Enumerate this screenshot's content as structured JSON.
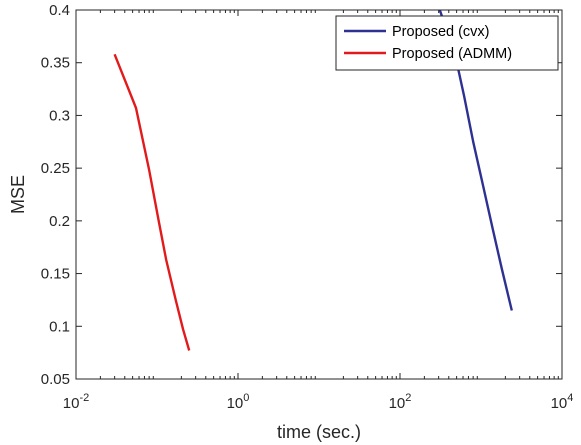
{
  "chart_data": {
    "type": "line",
    "xlabel": "time (sec.)",
    "ylabel": "MSE",
    "xscale": "log",
    "xlim": [
      0.01,
      10000
    ],
    "ylim": [
      0.05,
      0.4
    ],
    "x_ticks": [
      0.01,
      1,
      100,
      10000
    ],
    "x_tick_labels": [
      {
        "base": "10",
        "exp": "-2"
      },
      {
        "base": "10",
        "exp": "0"
      },
      {
        "base": "10",
        "exp": "2"
      },
      {
        "base": "10",
        "exp": "4"
      }
    ],
    "y_ticks": [
      0.05,
      0.1,
      0.15,
      0.2,
      0.25,
      0.3,
      0.35,
      0.4
    ],
    "y_tick_labels": [
      "0.05",
      "0.1",
      "0.15",
      "0.2",
      "0.25",
      "0.3",
      "0.35",
      "0.4"
    ],
    "grid": false,
    "legend_position": "top-right",
    "series": [
      {
        "name": "Proposed (cvx)",
        "color": "#2e3192",
        "x": [
          310,
          480,
          620,
          800,
          1050,
          1400,
          1800,
          2400
        ],
        "y": [
          0.4,
          0.357,
          0.318,
          0.275,
          0.235,
          0.192,
          0.155,
          0.115
        ]
      },
      {
        "name": "Proposed (ADMM)",
        "color": "#e31a1c",
        "x": [
          0.03,
          0.055,
          0.08,
          0.105,
          0.13,
          0.17,
          0.21,
          0.25
        ],
        "y": [
          0.358,
          0.307,
          0.248,
          0.2,
          0.163,
          0.125,
          0.097,
          0.077
        ]
      }
    ]
  }
}
